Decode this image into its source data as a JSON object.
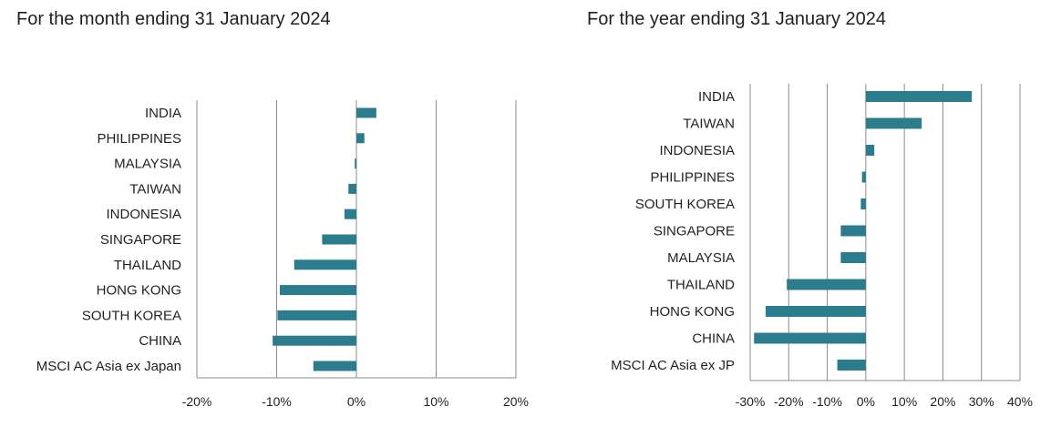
{
  "colors": {
    "bar": "#2b7c8c",
    "grid": "#8c8c8c",
    "text": "#231f20"
  },
  "chart_data": [
    {
      "type": "bar",
      "orientation": "horizontal",
      "title": "For the month ending 31 January 2024",
      "categories": [
        "INDIA",
        "PHILIPPINES",
        "MALAYSIA",
        "TAIWAN",
        "INDONESIA",
        "SINGAPORE",
        "THAILAND",
        "HONG KONG",
        "SOUTH KOREA",
        "CHINA",
        "MSCI AC Asia ex Japan"
      ],
      "values": [
        2.5,
        1.0,
        -0.2,
        -1.0,
        -1.5,
        -4.3,
        -7.8,
        -9.6,
        -9.9,
        -10.5,
        -5.4
      ],
      "xlim": [
        -20,
        20
      ],
      "xticks": [
        -20,
        -10,
        0,
        10,
        20
      ],
      "xtick_labels": [
        "-20%",
        "-10%",
        "0%",
        "10%",
        "20%"
      ],
      "grid": true
    },
    {
      "type": "bar",
      "orientation": "horizontal",
      "title": "For the year ending 31 January 2024",
      "categories": [
        "INDIA",
        "TAIWAN",
        "INDONESIA",
        "PHILIPPINES",
        "SOUTH KOREA",
        "SINGAPORE",
        "MALAYSIA",
        "THAILAND",
        "HONG KONG",
        "CHINA",
        "MSCI AC Asia ex JP"
      ],
      "values": [
        27.5,
        14.5,
        2.2,
        -1.0,
        -1.3,
        -6.5,
        -6.5,
        -20.5,
        -26.0,
        -29.0,
        -7.4
      ],
      "xlim": [
        -30,
        40
      ],
      "xticks": [
        -30,
        -20,
        -10,
        0,
        10,
        20,
        30,
        40
      ],
      "xtick_labels": [
        "-30%",
        "-20%",
        "-10%",
        "0%",
        "10%",
        "20%",
        "30%",
        "40%"
      ],
      "grid": true
    }
  ]
}
